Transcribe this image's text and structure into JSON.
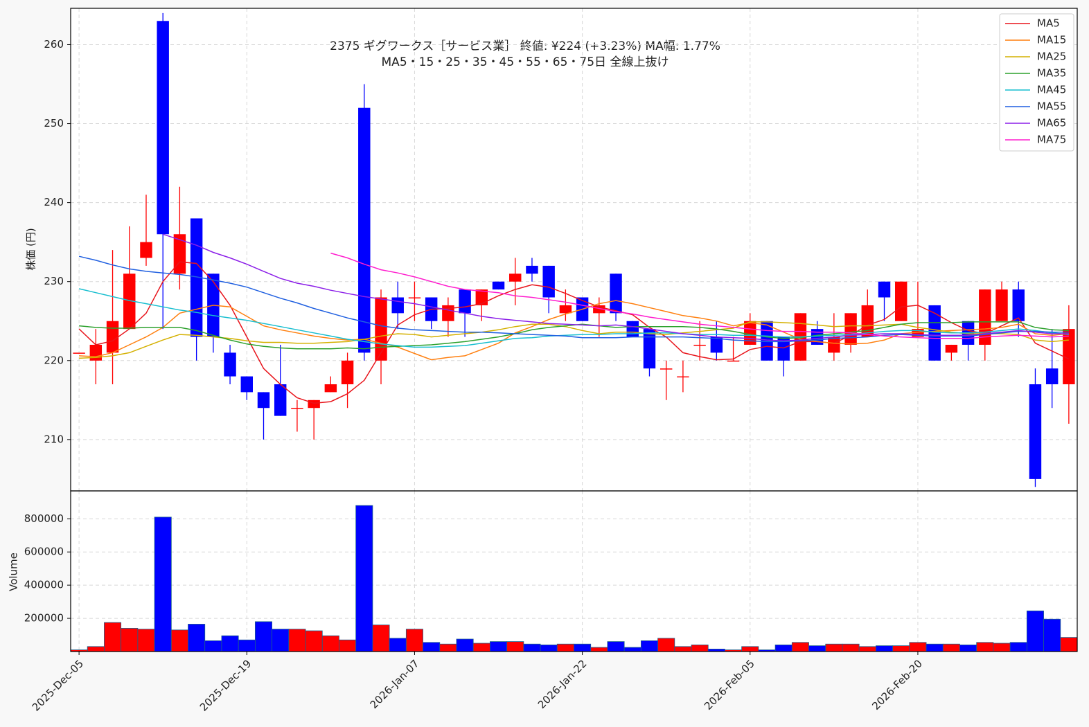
{
  "chart_data": [
    {
      "type": "candlestick",
      "title": "2375  ギグワークス［サービス業］ 終値: ¥224 (+3.23%)  MA幅: 1.77%",
      "subtitle": "MA5・15・25・35・45・55・65・75日 全線上抜け",
      "ylabel": "株価 (円)",
      "up_color": "#ff0000",
      "down_color": "#0000ff",
      "open": [
        221,
        220,
        221,
        224,
        233,
        263,
        231,
        238,
        231,
        221,
        218,
        216,
        217,
        214,
        214,
        216,
        217,
        252,
        220,
        228,
        228,
        228,
        225,
        229,
        227,
        230,
        230,
        232,
        232,
        226,
        228,
        226,
        231,
        225,
        224,
        219,
        218,
        222,
        223,
        220,
        222,
        225,
        223,
        220,
        224,
        221,
        222,
        223,
        230,
        225,
        223,
        227,
        221,
        225,
        222,
        225,
        229,
        217,
        219,
        217
      ],
      "high": [
        221,
        224,
        234,
        237,
        241,
        264,
        242,
        238,
        231,
        222,
        218,
        216,
        222,
        215,
        215,
        218,
        221,
        255,
        229,
        230,
        230,
        228,
        228,
        229,
        229,
        230,
        233,
        233,
        232,
        229,
        228,
        228,
        231,
        225,
        224,
        220,
        220,
        225,
        225,
        223,
        226,
        225,
        223,
        226,
        225,
        226,
        226,
        229,
        230,
        230,
        230,
        227,
        222,
        225,
        229,
        230,
        230,
        219,
        224,
        227
      ],
      "low": [
        221,
        217,
        217,
        224,
        232,
        224,
        229,
        220,
        221,
        217,
        215,
        210,
        213,
        211,
        210,
        216,
        214,
        220,
        217,
        224,
        225,
        224,
        223,
        223,
        225,
        229,
        227,
        230,
        226,
        225,
        225,
        223,
        225,
        223,
        218,
        215,
        216,
        220,
        220,
        220,
        222,
        220,
        218,
        220,
        222,
        220,
        221,
        223,
        225,
        225,
        223,
        220,
        220,
        220,
        220,
        225,
        223,
        204,
        214,
        212
      ],
      "close": [
        221,
        222,
        225,
        231,
        235,
        236,
        236,
        223,
        223,
        218,
        216,
        214,
        213,
        214,
        215,
        217,
        220,
        221,
        228,
        226,
        228,
        225,
        227,
        226,
        229,
        229,
        231,
        231,
        228,
        227,
        225,
        227,
        226,
        223,
        219,
        219,
        218,
        222,
        221,
        220,
        225,
        220,
        220,
        226,
        222,
        223,
        226,
        227,
        228,
        230,
        224,
        220,
        222,
        222,
        229,
        229,
        225,
        205,
        217,
        224
      ],
      "lines": [
        {
          "name": "MA5",
          "color": "#e8141b",
          "values": [
            224,
            222,
            222.5,
            224,
            226,
            230,
            232.5,
            232.3,
            230,
            227,
            223,
            219,
            217,
            215.3,
            214.6,
            214.8,
            215.8,
            217.5,
            221,
            224.5,
            225.8,
            226.5,
            226.6,
            226.8,
            227.2,
            228.2,
            229,
            229.6,
            229.3,
            228.5,
            227.6,
            226.8,
            226.3,
            225.8,
            224.2,
            223,
            221,
            220.5,
            220.1,
            220.2,
            221.4,
            221.8,
            221.6,
            222.4,
            222.4,
            222.2,
            223.2,
            224.5,
            225.2,
            226.8,
            227,
            226,
            224.8,
            223.8,
            223.4,
            224.4,
            225.4,
            222.2,
            221.2,
            220.2
          ]
        },
        {
          "name": "MA15",
          "color": "#ff7f0e",
          "values": [
            220.6,
            220.5,
            221,
            222,
            223,
            224.2,
            226,
            226.5,
            227,
            226.8,
            225.6,
            224.4,
            223.9,
            223.5,
            223.1,
            222.8,
            222.6,
            222.7,
            222.2,
            221.7,
            220.9,
            220.1,
            220.4,
            220.6,
            221.4,
            222.2,
            223.5,
            224.3,
            225.2,
            225.9,
            226.5,
            227.2,
            227.6,
            227.2,
            226.7,
            226.2,
            225.7,
            225.4,
            225,
            224.4,
            224.8,
            224.5,
            223.6,
            222.7,
            222.4,
            222.2,
            222.1,
            222.2,
            222.6,
            223.4,
            223.6,
            223.7,
            223.8,
            223.9,
            224,
            224.2,
            224.6,
            223.4,
            223.2,
            223.4
          ]
        },
        {
          "name": "MA25",
          "color": "#d4b000",
          "values": [
            220.3,
            220.4,
            220.6,
            221,
            221.8,
            222.6,
            223.3,
            223.2,
            223,
            222.8,
            222.5,
            222.3,
            222.3,
            222.2,
            222.2,
            222.3,
            222.4,
            222.7,
            223.1,
            223.4,
            223.3,
            223,
            223.2,
            223.4,
            223.6,
            223.9,
            224.3,
            224.6,
            224.6,
            224.3,
            223.8,
            223.4,
            223.6,
            223.6,
            223.4,
            223.3,
            223.5,
            223.7,
            223.9,
            224.1,
            224.9,
            224.9,
            224.8,
            224.7,
            224.5,
            224.3,
            224.4,
            224.4,
            224.5,
            224.6,
            224.2,
            223.9,
            223.6,
            223.4,
            223.4,
            223.4,
            223.3,
            222.6,
            222.4,
            222.6
          ]
        },
        {
          "name": "MA35",
          "color": "#2ca02c",
          "values": [
            224.4,
            224.2,
            224.1,
            224.1,
            224.2,
            224.2,
            224.2,
            223.8,
            223.2,
            222.6,
            222.1,
            221.8,
            221.6,
            221.5,
            221.5,
            221.5,
            221.6,
            221.5,
            221.7,
            221.8,
            221.9,
            222,
            222.2,
            222.4,
            222.7,
            223,
            223.4,
            223.9,
            224.2,
            224.4,
            224.6,
            224.4,
            224.2,
            224.3,
            224.3,
            224.3,
            224.3,
            224.2,
            224,
            223.7,
            223.3,
            223,
            222.8,
            222.9,
            223.2,
            223.4,
            223.6,
            223.8,
            224.2,
            224.6,
            224.8,
            224.8,
            224.8,
            224.9,
            224.9,
            224.9,
            224.9,
            224.2,
            223.9,
            223.8
          ]
        },
        {
          "name": "MA45",
          "color": "#17becf",
          "values": [
            229.1,
            228.6,
            228.1,
            227.6,
            227.2,
            226.8,
            226.4,
            226.1,
            225.7,
            225.4,
            225.1,
            224.7,
            224.3,
            223.9,
            223.5,
            223.1,
            222.7,
            222.4,
            222.1,
            221.9,
            221.7,
            221.7,
            221.8,
            221.9,
            222.2,
            222.5,
            222.8,
            222.9,
            223.1,
            223.2,
            223.3,
            223.3,
            223.4,
            223.4,
            223.5,
            223.5,
            223.4,
            223.3,
            223.3,
            223.2,
            223.2,
            223.1,
            223,
            223,
            223.1,
            223.2,
            223.3,
            223.5,
            223.7,
            223.8,
            223.8,
            223.6,
            223.5,
            223.5,
            223.6,
            223.8,
            224,
            223.8,
            223.5,
            223.3
          ]
        },
        {
          "name": "MA55",
          "color": "#1f5fe0",
          "values": [
            233.2,
            232.7,
            232.1,
            231.6,
            231.3,
            231.1,
            230.9,
            230.6,
            230.2,
            229.8,
            229.3,
            228.6,
            227.9,
            227.3,
            226.6,
            226,
            225.4,
            224.9,
            224.4,
            224.1,
            223.9,
            223.8,
            223.7,
            223.6,
            223.6,
            223.5,
            223.4,
            223.3,
            223.2,
            223.1,
            222.9,
            222.9,
            222.9,
            223,
            223,
            223,
            223,
            222.9,
            222.8,
            222.6,
            222.5,
            222.4,
            222.4,
            222.5,
            222.6,
            222.8,
            222.9,
            223,
            223.2,
            223.3,
            223.2,
            223.1,
            223.1,
            223.1,
            223.3,
            223.5,
            223.7,
            223.7,
            223.6,
            223.6
          ]
        },
        {
          "name": "MA65",
          "color": "#8b1ee8",
          "values": [
            null,
            null,
            null,
            null,
            null,
            236,
            235.3,
            234.6,
            233.7,
            233,
            232.2,
            231.3,
            230.4,
            229.8,
            229.4,
            228.9,
            228.5,
            228.1,
            227.8,
            227.5,
            227.2,
            226.8,
            226.4,
            226,
            225.6,
            225.3,
            225.1,
            224.9,
            224.7,
            224.6,
            224.5,
            224.4,
            224.5,
            224.3,
            224,
            223.7,
            223.4,
            223.2,
            223,
            222.9,
            222.8,
            222.6,
            222.5,
            222.6,
            222.8,
            223,
            223.2,
            223.3,
            223.4,
            223.4,
            223.3,
            223.2,
            223.2,
            223.2,
            223.4,
            223.6,
            223.8,
            223.6,
            223.4,
            223.4
          ]
        },
        {
          "name": "MA75",
          "color": "#ff1dce",
          "values": [
            null,
            null,
            null,
            null,
            null,
            null,
            null,
            null,
            null,
            null,
            null,
            null,
            null,
            null,
            null,
            233.6,
            233,
            232.2,
            231.5,
            231.1,
            230.6,
            230,
            229.4,
            229,
            228.8,
            228.6,
            228.2,
            228,
            227.7,
            227.4,
            227,
            226.6,
            226.2,
            225.9,
            225.5,
            225.2,
            224.9,
            224.6,
            224.4,
            224.2,
            224,
            223.8,
            223.7,
            223.7,
            223.6,
            223.6,
            223.5,
            223.3,
            223.1,
            223,
            222.9,
            222.8,
            222.8,
            222.8,
            223,
            223.1,
            223.2,
            223.1,
            223,
            223.1
          ]
        }
      ],
      "ylim": [
        203.5,
        264.6
      ],
      "yticks": [
        210,
        220,
        230,
        240,
        250,
        260
      ],
      "grid": true,
      "legend": "upper right"
    },
    {
      "type": "bar",
      "ylabel": "Volume",
      "categories": [
        "2025-Dec-05",
        null,
        null,
        null,
        null,
        null,
        null,
        null,
        null,
        null,
        "2025-Dec-19",
        null,
        null,
        null,
        null,
        null,
        null,
        null,
        null,
        null,
        "2026-Jan-07",
        null,
        null,
        null,
        null,
        null,
        null,
        null,
        null,
        null,
        "2026-Jan-22",
        null,
        null,
        null,
        null,
        null,
        null,
        null,
        null,
        null,
        "2026-Feb-05",
        null,
        null,
        null,
        null,
        null,
        null,
        null,
        null,
        null,
        "2026-Feb-20",
        null,
        null,
        null,
        null,
        null,
        null,
        null,
        null,
        null
      ],
      "values": [
        10000,
        30000,
        175000,
        140000,
        135000,
        810000,
        130000,
        165000,
        65000,
        95000,
        70000,
        180000,
        135000,
        135000,
        125000,
        95000,
        70000,
        880000,
        160000,
        80000,
        135000,
        55000,
        45000,
        75000,
        50000,
        60000,
        60000,
        45000,
        40000,
        45000,
        45000,
        25000,
        60000,
        25000,
        65000,
        80000,
        30000,
        40000,
        15000,
        10000,
        30000,
        10000,
        40000,
        55000,
        35000,
        45000,
        45000,
        30000,
        35000,
        35000,
        55000,
        45000,
        45000,
        40000,
        55000,
        50000,
        55000,
        245000,
        195000,
        85000
      ],
      "ylim": [
        0,
        968000
      ],
      "yticks": [
        200000,
        400000,
        600000,
        800000
      ],
      "grid": true
    }
  ]
}
